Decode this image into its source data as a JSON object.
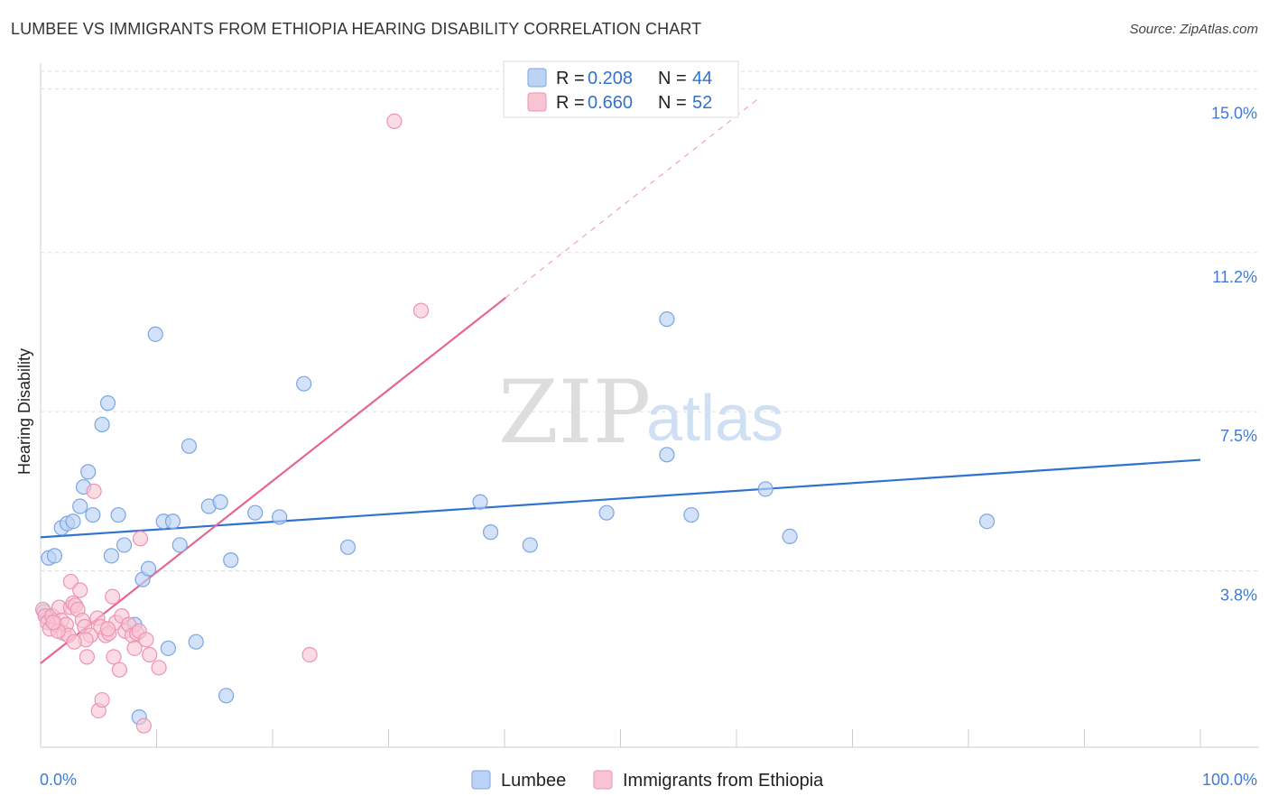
{
  "title": "LUMBEE VS IMMIGRANTS FROM ETHIOPIA HEARING DISABILITY CORRELATION CHART",
  "source": "Source: ZipAtlas.com",
  "watermark": {
    "zip": "ZIP",
    "atlas": "atlas"
  },
  "colors": {
    "lumbee_fill": "#bcd3f5",
    "lumbee_stroke": "#7aa6e3",
    "lumbee_line": "#2f72d0",
    "ethiopia_fill": "#f8c4d4",
    "ethiopia_stroke": "#ee93b1",
    "ethiopia_line": "#e5678f",
    "tick_text": "#3e7bd9",
    "grid": "#dddddd"
  },
  "legend_top": {
    "rows": [
      {
        "r_label": "R = ",
        "r_value": "0.208",
        "n_label": "N = ",
        "n_value": "44"
      },
      {
        "r_label": "R = ",
        "r_value": "0.660",
        "n_label": "N = ",
        "n_value": "52"
      }
    ]
  },
  "chart_data": {
    "type": "scatter",
    "title": "LUMBEE VS IMMIGRANTS FROM ETHIOPIA HEARING DISABILITY CORRELATION CHART",
    "xlabel": "",
    "ylabel": "Hearing Disability",
    "xlim": [
      0,
      100
    ],
    "ylim": [
      -0.3,
      15.6
    ],
    "x_tick_labels": [
      "0.0%",
      "100.0%"
    ],
    "y_ticks": [
      3.8,
      7.5,
      11.2,
      15.0
    ],
    "y_tick_labels": [
      "3.8%",
      "7.5%",
      "11.2%",
      "15.0%"
    ],
    "grid": true,
    "legend_position": "bottom-center",
    "series": [
      {
        "name": "Lumbee",
        "R": 0.208,
        "N": 44,
        "trend": {
          "x": [
            0,
            100
          ],
          "y": [
            4.58,
            6.38
          ]
        },
        "points": [
          {
            "x": 0.3,
            "y": 2.85
          },
          {
            "x": 0.6,
            "y": 2.7
          },
          {
            "x": 0.7,
            "y": 4.1
          },
          {
            "x": 1.2,
            "y": 4.15
          },
          {
            "x": 1.8,
            "y": 4.8
          },
          {
            "x": 2.3,
            "y": 4.9
          },
          {
            "x": 2.8,
            "y": 4.95
          },
          {
            "x": 3.4,
            "y": 5.3
          },
          {
            "x": 3.7,
            "y": 5.75
          },
          {
            "x": 4.1,
            "y": 6.1
          },
          {
            "x": 4.5,
            "y": 5.1
          },
          {
            "x": 5.3,
            "y": 7.2
          },
          {
            "x": 5.8,
            "y": 7.7
          },
          {
            "x": 6.1,
            "y": 4.15
          },
          {
            "x": 6.7,
            "y": 5.1
          },
          {
            "x": 7.2,
            "y": 4.4
          },
          {
            "x": 8.1,
            "y": 2.55
          },
          {
            "x": 8.5,
            "y": 0.4
          },
          {
            "x": 8.8,
            "y": 3.6
          },
          {
            "x": 9.3,
            "y": 3.85
          },
          {
            "x": 9.9,
            "y": 9.3
          },
          {
            "x": 10.6,
            "y": 4.95
          },
          {
            "x": 11.0,
            "y": 2.0
          },
          {
            "x": 11.4,
            "y": 4.95
          },
          {
            "x": 12.0,
            "y": 4.4
          },
          {
            "x": 12.8,
            "y": 6.7
          },
          {
            "x": 13.4,
            "y": 2.15
          },
          {
            "x": 14.5,
            "y": 5.3
          },
          {
            "x": 15.5,
            "y": 5.4
          },
          {
            "x": 16.0,
            "y": 0.9
          },
          {
            "x": 16.4,
            "y": 4.05
          },
          {
            "x": 18.5,
            "y": 5.15
          },
          {
            "x": 20.6,
            "y": 5.05
          },
          {
            "x": 22.7,
            "y": 8.15
          },
          {
            "x": 26.5,
            "y": 4.35
          },
          {
            "x": 37.9,
            "y": 5.4
          },
          {
            "x": 38.8,
            "y": 4.7
          },
          {
            "x": 42.2,
            "y": 4.4
          },
          {
            "x": 48.8,
            "y": 5.15
          },
          {
            "x": 54.0,
            "y": 9.65
          },
          {
            "x": 54.0,
            "y": 6.5
          },
          {
            "x": 56.1,
            "y": 5.1
          },
          {
            "x": 62.5,
            "y": 5.7
          },
          {
            "x": 64.6,
            "y": 4.6
          },
          {
            "x": 81.6,
            "y": 4.95
          }
        ]
      },
      {
        "name": "Immigrants from Ethiopia",
        "R": 0.66,
        "N": 52,
        "trend": {
          "x": [
            0,
            40.1
          ],
          "y": [
            1.65,
            10.15
          ]
        },
        "trend_dashed": {
          "x": [
            40.1,
            62.0
          ],
          "y": [
            10.15,
            14.8
          ]
        },
        "points": [
          {
            "x": 0.2,
            "y": 2.9
          },
          {
            "x": 0.4,
            "y": 2.75
          },
          {
            "x": 0.6,
            "y": 2.6
          },
          {
            "x": 0.8,
            "y": 2.45
          },
          {
            "x": 1.0,
            "y": 2.75
          },
          {
            "x": 1.3,
            "y": 2.55
          },
          {
            "x": 1.6,
            "y": 2.95
          },
          {
            "x": 1.8,
            "y": 2.65
          },
          {
            "x": 2.0,
            "y": 2.35
          },
          {
            "x": 2.2,
            "y": 2.55
          },
          {
            "x": 2.4,
            "y": 2.3
          },
          {
            "x": 2.6,
            "y": 2.95
          },
          {
            "x": 2.8,
            "y": 3.05
          },
          {
            "x": 2.6,
            "y": 3.55
          },
          {
            "x": 3.0,
            "y": 3.0
          },
          {
            "x": 3.2,
            "y": 2.9
          },
          {
            "x": 3.4,
            "y": 3.35
          },
          {
            "x": 3.6,
            "y": 2.65
          },
          {
            "x": 3.8,
            "y": 2.5
          },
          {
            "x": 4.0,
            "y": 1.8
          },
          {
            "x": 4.3,
            "y": 2.3
          },
          {
            "x": 4.6,
            "y": 5.65
          },
          {
            "x": 4.9,
            "y": 2.7
          },
          {
            "x": 5.2,
            "y": 2.5
          },
          {
            "x": 5.0,
            "y": 0.55
          },
          {
            "x": 5.3,
            "y": 0.8
          },
          {
            "x": 5.6,
            "y": 2.3
          },
          {
            "x": 5.9,
            "y": 2.35
          },
          {
            "x": 6.2,
            "y": 3.2
          },
          {
            "x": 6.5,
            "y": 2.6
          },
          {
            "x": 6.8,
            "y": 1.5
          },
          {
            "x": 7.0,
            "y": 2.75
          },
          {
            "x": 7.3,
            "y": 2.4
          },
          {
            "x": 7.6,
            "y": 2.55
          },
          {
            "x": 7.9,
            "y": 2.3
          },
          {
            "x": 8.1,
            "y": 2.0
          },
          {
            "x": 8.3,
            "y": 2.35
          },
          {
            "x": 8.5,
            "y": 2.4
          },
          {
            "x": 8.6,
            "y": 4.55
          },
          {
            "x": 8.9,
            "y": 0.2
          },
          {
            "x": 9.1,
            "y": 2.2
          },
          {
            "x": 9.4,
            "y": 1.85
          },
          {
            "x": 10.2,
            "y": 1.55
          },
          {
            "x": 6.3,
            "y": 1.8
          },
          {
            "x": 5.8,
            "y": 2.45
          },
          {
            "x": 1.5,
            "y": 2.4
          },
          {
            "x": 3.9,
            "y": 2.2
          },
          {
            "x": 2.9,
            "y": 2.15
          },
          {
            "x": 1.1,
            "y": 2.6
          },
          {
            "x": 23.2,
            "y": 1.85
          },
          {
            "x": 32.8,
            "y": 9.85
          },
          {
            "x": 30.5,
            "y": 14.25
          }
        ]
      }
    ]
  }
}
